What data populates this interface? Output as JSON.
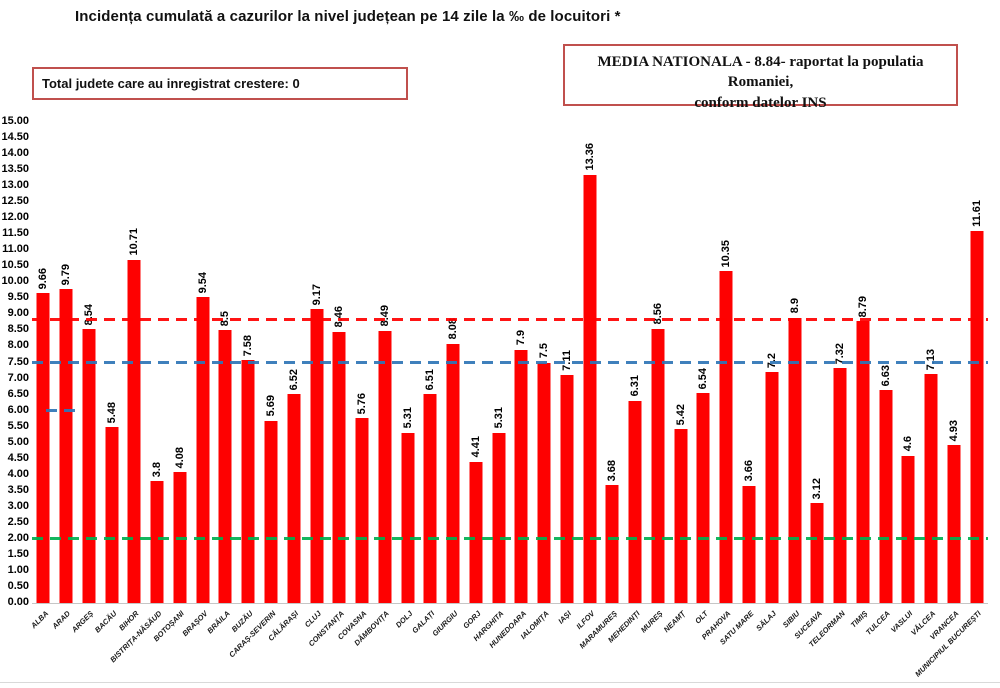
{
  "title": "Incidența cumulată a cazurilor la nivel județean pe 14 zile la ‰ de locuitori *",
  "info_box": {
    "text": "Total judete care au inregistrat crestere: 0"
  },
  "national_average_box": {
    "line1": "MEDIA NATIONALA - 8.84-  raportat la populatia  Romaniei,",
    "line2": "conform datelor INS"
  },
  "chart_data": {
    "type": "bar",
    "title": "Incidența cumulată a cazurilor la nivel județean pe 14 zile la ‰ de locuitori *",
    "categories": [
      "ALBA",
      "ARAD",
      "ARGEȘ",
      "BACĂU",
      "BIHOR",
      "BISTRIȚA-NĂSĂUD",
      "BOTOȘANI",
      "BRAȘOV",
      "BRĂILA",
      "BUZĂU",
      "CARAȘ-SEVERIN",
      "CĂLĂRAȘI",
      "CLUJ",
      "CONSTANȚA",
      "COVASNA",
      "DÂMBOVIȚA",
      "DOLJ",
      "GALAȚI",
      "GIURGIU",
      "GORJ",
      "HARGHITA",
      "HUNEDOARA",
      "IALOMIȚA",
      "IAȘI",
      "ILFOV",
      "MARAMUREȘ",
      "MEHEDINȚI",
      "MUREȘ",
      "NEAMȚ",
      "OLT",
      "PRAHOVA",
      "SATU MARE",
      "SĂLAJ",
      "SIBIU",
      "SUCEAVA",
      "TELEORMAN",
      "TIMIȘ",
      "TULCEA",
      "VASLUI",
      "VÂLCEA",
      "VRANCEA",
      "MUNICIPIUL BUCUREȘTI"
    ],
    "values": [
      9.66,
      9.79,
      8.54,
      5.48,
      10.71,
      3.8,
      4.08,
      9.54,
      8.5,
      7.58,
      5.69,
      6.52,
      9.17,
      8.46,
      5.76,
      8.49,
      5.31,
      6.51,
      8.08,
      4.41,
      5.31,
      7.9,
      7.5,
      7.11,
      13.36,
      3.68,
      6.31,
      8.56,
      5.42,
      6.54,
      10.35,
      3.66,
      7.2,
      8.9,
      3.12,
      7.32,
      8.79,
      6.63,
      4.6,
      7.13,
      4.93,
      11.61
    ],
    "xlabel": "",
    "ylabel": "",
    "ylim": [
      0,
      15
    ],
    "ytick_step": 0.5,
    "ytick_decimals": 2,
    "grid": false,
    "legend": "none",
    "bar_color": "#fe0101",
    "reference_lines": [
      {
        "name": "media-nationala-line",
        "value": 8.84,
        "color": "#ff0000",
        "style": "dashed",
        "span": "full"
      },
      {
        "name": "blue-reference-line",
        "value": 7.5,
        "color": "#2e75b6",
        "style": "dashed",
        "span": "full"
      },
      {
        "name": "green-reference-line",
        "value": 2.0,
        "color": "#00b050",
        "style": "dashed",
        "span": "full"
      },
      {
        "name": "blue-stub-line",
        "value": 6.0,
        "color": "#2e75b6",
        "style": "dashed",
        "span": "stub"
      }
    ]
  },
  "colors": {
    "box_border": "#c0504d",
    "axis_line": "#c6c6c6",
    "text": "#000000",
    "background": "#ffffff"
  }
}
